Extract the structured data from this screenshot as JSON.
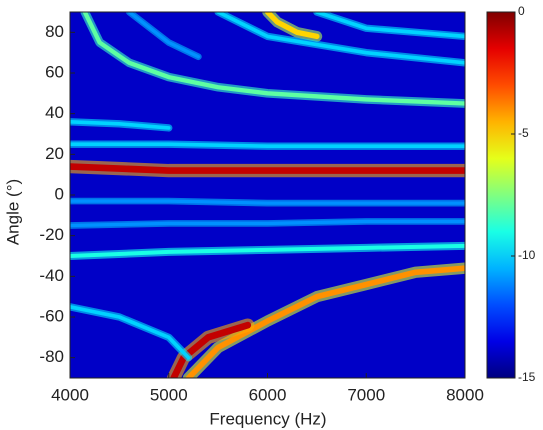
{
  "chart_data": {
    "type": "heatmap-ridges",
    "x_label": "Frequency (Hz)",
    "y_label": "Angle (°)",
    "xlim": [
      4000,
      8000
    ],
    "xticks": [
      4000,
      5000,
      6000,
      7000,
      8000
    ],
    "ylim": [
      -90,
      90
    ],
    "yticks": [
      -80,
      -60,
      -40,
      -20,
      0,
      20,
      40,
      60,
      80
    ],
    "zlim": [
      -15,
      0
    ],
    "zticks": [
      0,
      -5,
      -10,
      -15
    ],
    "colormap": "jet",
    "series": [
      {
        "x": [
          4000,
          4500,
          5000,
          5500,
          6000,
          6500,
          7000,
          7500,
          8000
        ],
        "values": [
          14,
          13,
          12,
          12,
          12,
          12,
          12,
          12,
          12
        ],
        "level": -1
      },
      {
        "x": [
          5200,
          5500,
          6000,
          6500,
          7000,
          7500,
          8000
        ],
        "values": [
          -90,
          -75,
          -62,
          -50,
          -44,
          -38,
          -36
        ],
        "level": -4
      },
      {
        "x": [
          5050,
          5150,
          5400,
          5800
        ],
        "values": [
          -90,
          -80,
          -70,
          -64
        ],
        "level": -1
      },
      {
        "x": [
          4150,
          4300,
          4600,
          5000,
          5500,
          6000,
          7000,
          8000
        ],
        "values": [
          90,
          75,
          65,
          58,
          53,
          50,
          47,
          45
        ],
        "level": -8
      },
      {
        "x": [
          6000,
          6100,
          6300,
          6500
        ],
        "values": [
          90,
          85,
          80,
          78
        ],
        "level": -5
      },
      {
        "x": [
          4000,
          5000,
          6000,
          7000,
          8000
        ],
        "values": [
          -30,
          -28,
          -27,
          -26,
          -25
        ],
        "level": -9
      },
      {
        "x": [
          4000,
          5000,
          6000,
          7000,
          8000
        ],
        "values": [
          25,
          25,
          24,
          24,
          24
        ],
        "level": -10
      },
      {
        "x": [
          4000,
          5000,
          6000,
          7000,
          8000
        ],
        "values": [
          -3,
          -3,
          -4,
          -4,
          -4
        ],
        "level": -11
      },
      {
        "x": [
          4000,
          4500,
          5000
        ],
        "values": [
          36,
          35,
          33
        ],
        "level": -10
      },
      {
        "x": [
          4000,
          4500,
          5000,
          5200
        ],
        "values": [
          -55,
          -60,
          -70,
          -80
        ],
        "level": -10
      },
      {
        "x": [
          5500,
          6000,
          7000,
          8000
        ],
        "values": [
          90,
          78,
          70,
          65
        ],
        "level": -10
      },
      {
        "x": [
          6500,
          7000,
          8000
        ],
        "values": [
          90,
          82,
          78
        ],
        "level": -10
      },
      {
        "x": [
          4000,
          5000,
          6000,
          7000,
          8000
        ],
        "values": [
          -15,
          -14,
          -14,
          -13,
          -13
        ],
        "level": -11
      },
      {
        "x": [
          4600,
          5000,
          5300
        ],
        "values": [
          90,
          75,
          68
        ],
        "level": -11
      }
    ]
  }
}
